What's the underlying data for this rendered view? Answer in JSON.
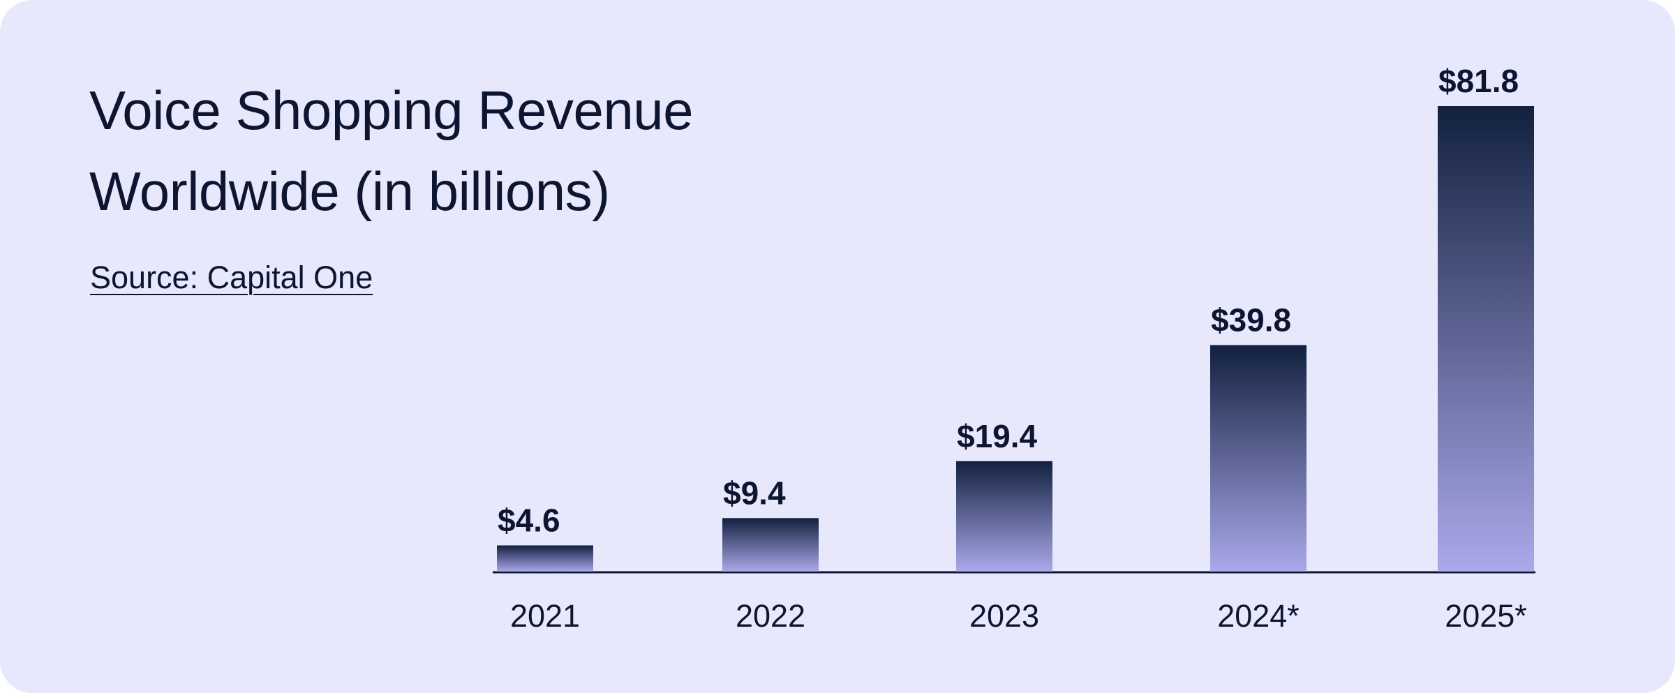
{
  "chart_data": {
    "type": "bar",
    "title": "Voice Shopping Revenue Worldwide (in billions)",
    "source": "Source: Capital One",
    "categories": [
      "2021",
      "2022",
      "2023",
      "2024*",
      "2025*"
    ],
    "values": [
      4.6,
      9.4,
      19.4,
      39.8,
      81.8
    ],
    "value_labels": [
      "$4.6",
      "$9.4",
      "$19.4",
      "$39.8",
      "$81.8"
    ],
    "color": [
      "#12213f",
      "#aaa9ea"
    ]
  }
}
